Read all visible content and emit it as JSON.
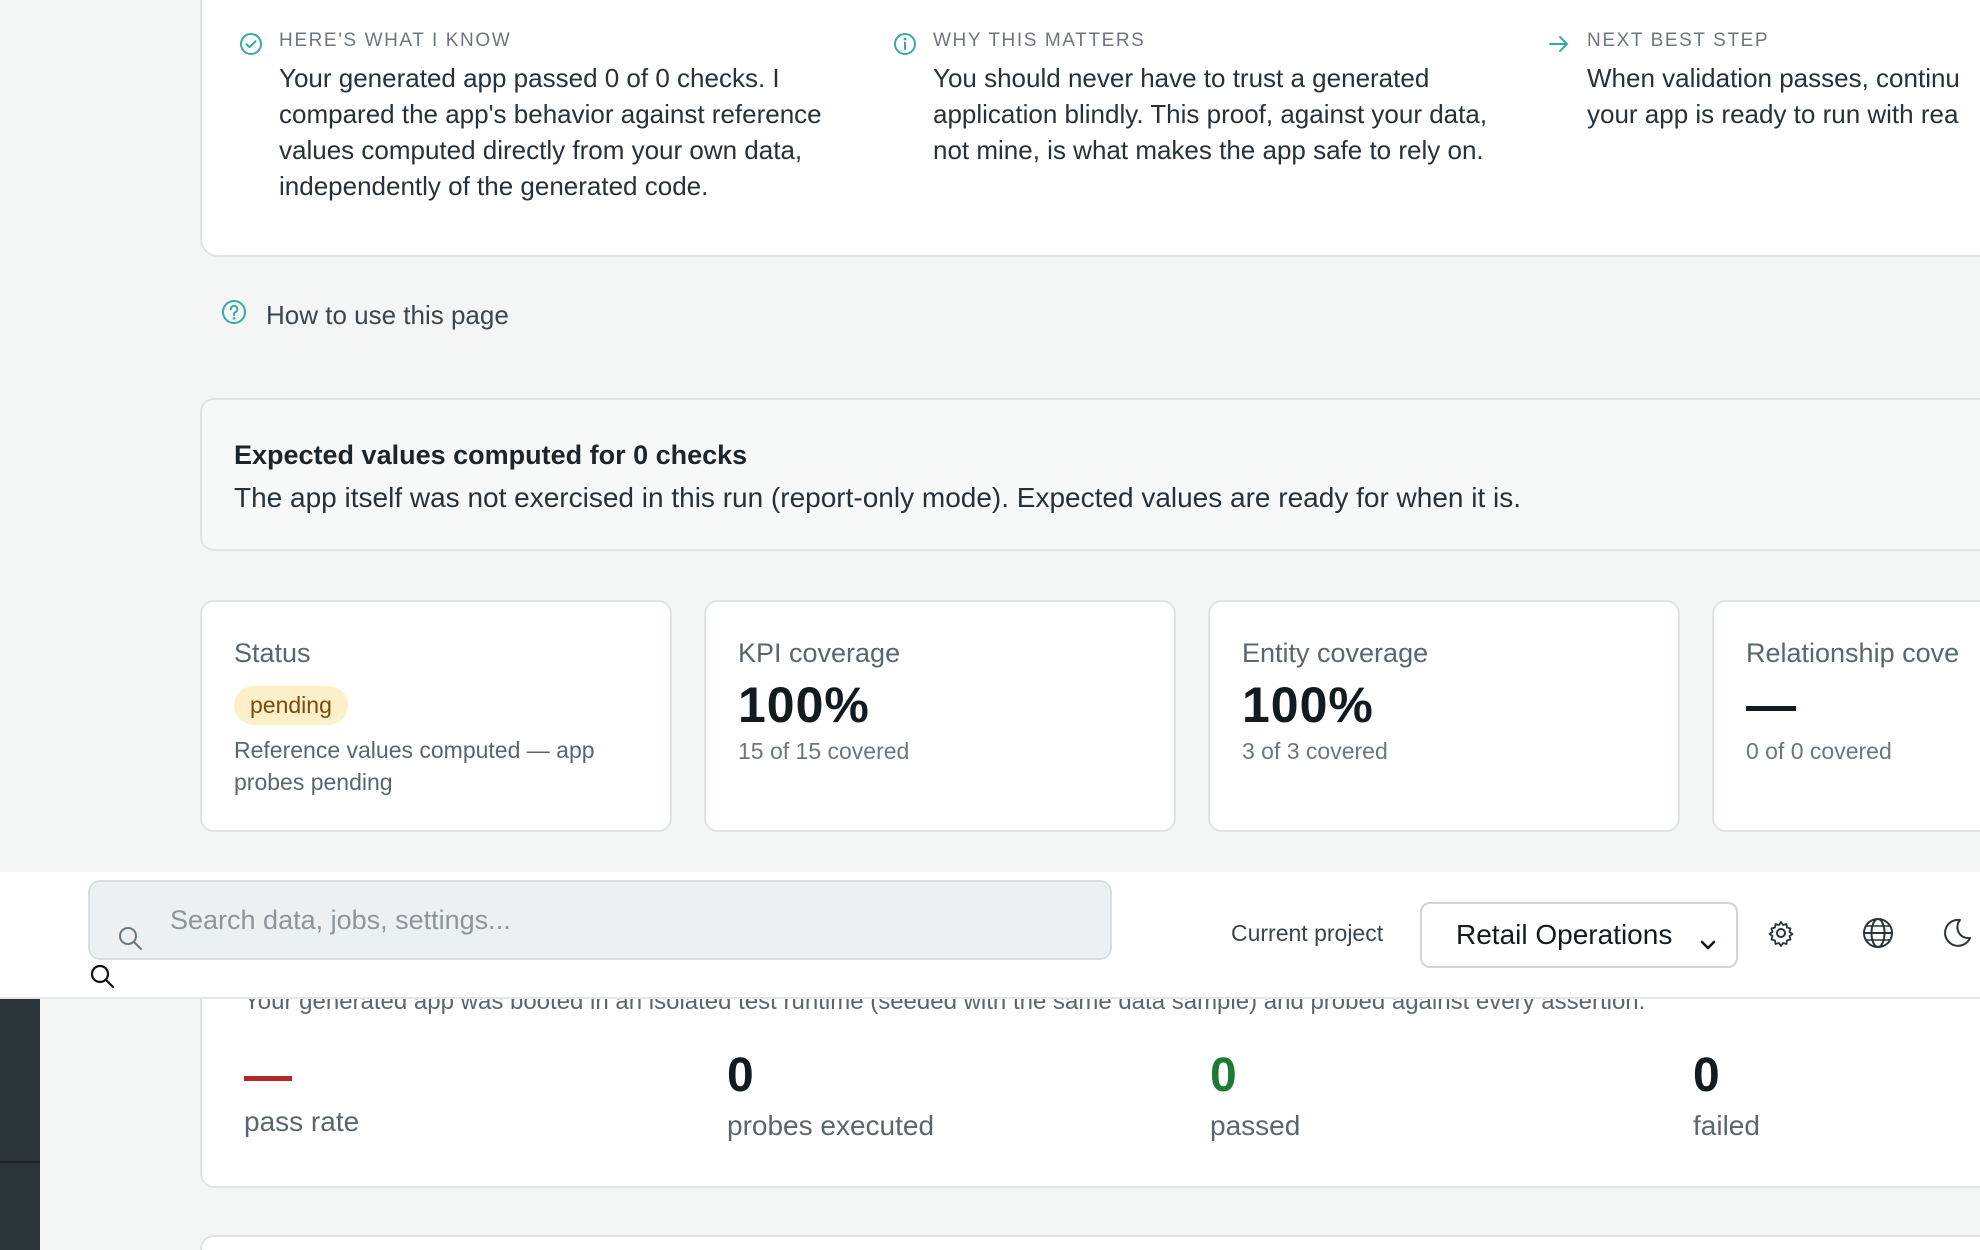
{
  "info": {
    "know": {
      "eyebrow": "HERE'S WHAT I KNOW",
      "body": "Your generated app passed 0 of 0 checks. I compared the app's behavior against reference values computed directly from your own data, independently of the generated code."
    },
    "why": {
      "eyebrow": "WHY THIS MATTERS",
      "body": "You should never have to trust a generated application blindly. This proof, against your data, not mine, is what makes the app safe to rely on."
    },
    "next": {
      "eyebrow": "NEXT BEST STEP",
      "body_line1": "When validation passes, continu",
      "body_line2": "your app is ready to run with rea"
    }
  },
  "howto": {
    "label": "How to use this page"
  },
  "expected": {
    "title": "Expected values computed for 0 checks",
    "description": "The app itself was not exercised in this run (report-only mode). Expected values are ready for when it is."
  },
  "metrics": {
    "status": {
      "label": "Status",
      "badge": "pending",
      "note": "Reference values computed — app probes pending"
    },
    "kpi": {
      "label": "KPI coverage",
      "value": "100%",
      "sub": "15 of 15 covered"
    },
    "entity": {
      "label": "Entity coverage",
      "value": "100%",
      "sub": "3 of 3 covered"
    },
    "relationship": {
      "label": "Relationship cove",
      "value": "—",
      "sub": "0 of 0 covered"
    }
  },
  "toolbar": {
    "search_placeholder": "Search data, jobs, settings...",
    "project_label": "Current project",
    "project_value": "Retail Operations"
  },
  "probes": {
    "clipped_text": "Your generated app was booted in an isolated test runtime (seeded with the same data sample) and probed against every assertion.",
    "pass_rate": {
      "value": "—",
      "label": "pass rate"
    },
    "executed": {
      "value": "0",
      "label": "probes executed"
    },
    "passed": {
      "value": "0",
      "label": "passed"
    },
    "failed": {
      "value": "0",
      "label": "failed"
    }
  },
  "colors": {
    "accent_teal": "#3aa8a4",
    "pending_badge_bg": "#fdf0c8",
    "passed_green": "#1d7a34",
    "pass_rate_red": "#b02828"
  }
}
